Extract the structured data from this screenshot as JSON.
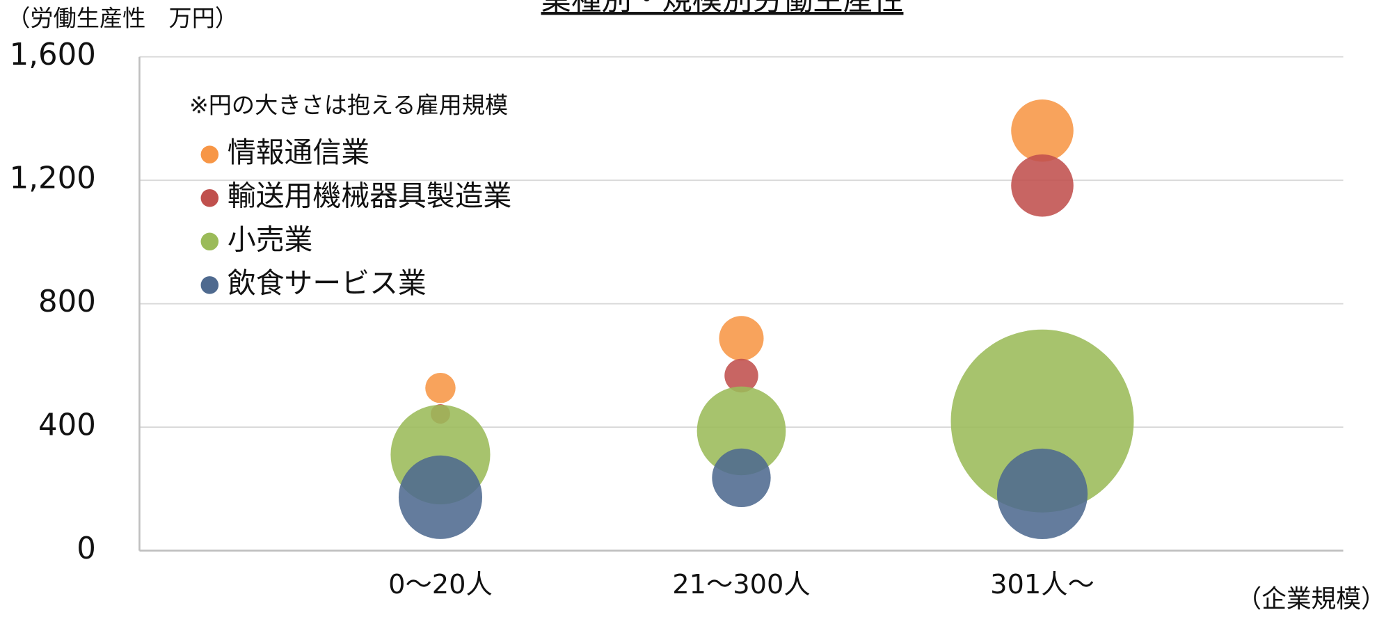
{
  "chart_data": {
    "type": "bubble",
    "title": "業種別・規模別労働生産性",
    "y_label": "（労働生産性　万円）",
    "x_label": "（企業規模）",
    "note": "※円の大きさは抱える雇用規模",
    "x": [
      1,
      2,
      3
    ],
    "xlim": [
      0,
      4
    ],
    "xticks": [
      {
        "value": 1,
        "label": "0〜20人"
      },
      {
        "value": 2,
        "label": "21〜300人"
      },
      {
        "value": 3,
        "label": "301人〜"
      }
    ],
    "ylim": [
      0,
      1600
    ],
    "yticks": [
      0,
      400,
      800,
      {
        "value": 1200,
        "label": "1,200"
      },
      {
        "value": 1600,
        "label": "1,600"
      }
    ],
    "grid": true,
    "legend": "upper left",
    "series": [
      {
        "name": "情報通信業",
        "color": "#f79646",
        "values": [
          527,
          688,
          1361
        ],
        "sizes": [
          2.9,
          6.3,
          12.3
        ]
      },
      {
        "name": "輸送用機械器具製造業",
        "color": "#c0504d",
        "values": [
          443,
          567,
          1183
        ],
        "sizes": [
          1.2,
          3.6,
          12.3
        ]
      },
      {
        "name": "小売業",
        "color": "#9bbb59",
        "values": [
          311,
          388,
          420
        ],
        "sizes": [
          31.4,
          25,
          106
        ]
      },
      {
        "name": "飲食サービス業",
        "color": "#4f6a8f",
        "values": [
          173,
          236,
          184
        ],
        "sizes": [
          22.1,
          10.9,
          26
        ]
      }
    ]
  }
}
